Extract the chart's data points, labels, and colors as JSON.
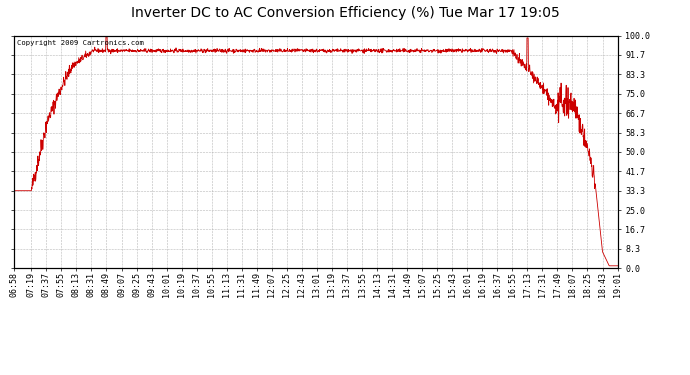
{
  "title": "Inverter DC to AC Conversion Efficiency (%) Tue Mar 17 19:05",
  "copyright_text": "Copyright 2009 Cartronics.com",
  "ylabel_right": [
    "100.0",
    "91.7",
    "83.3",
    "75.0",
    "66.7",
    "58.3",
    "50.0",
    "41.7",
    "33.3",
    "25.0",
    "16.7",
    "8.3",
    "0.0"
  ],
  "ytick_values": [
    100.0,
    91.7,
    83.3,
    75.0,
    66.7,
    58.3,
    50.0,
    41.7,
    33.3,
    25.0,
    16.7,
    8.3,
    0.0
  ],
  "ylim": [
    0.0,
    100.0
  ],
  "line_color": "#cc0000",
  "background_color": "#ffffff",
  "grid_color": "#b0b0b0",
  "title_fontsize": 10,
  "tick_fontsize": 6,
  "x_tick_labels": [
    "06:58",
    "07:19",
    "07:37",
    "07:55",
    "08:13",
    "08:31",
    "08:49",
    "09:07",
    "09:25",
    "09:43",
    "10:01",
    "10:19",
    "10:37",
    "10:55",
    "11:13",
    "11:31",
    "11:49",
    "12:07",
    "12:25",
    "12:43",
    "13:01",
    "13:19",
    "13:37",
    "13:55",
    "14:13",
    "14:31",
    "14:49",
    "15:07",
    "15:25",
    "15:43",
    "16:01",
    "16:19",
    "16:37",
    "16:55",
    "17:13",
    "17:31",
    "17:49",
    "18:07",
    "18:25",
    "18:43",
    "19:01"
  ],
  "start_time": "06:58",
  "end_time": "19:01"
}
